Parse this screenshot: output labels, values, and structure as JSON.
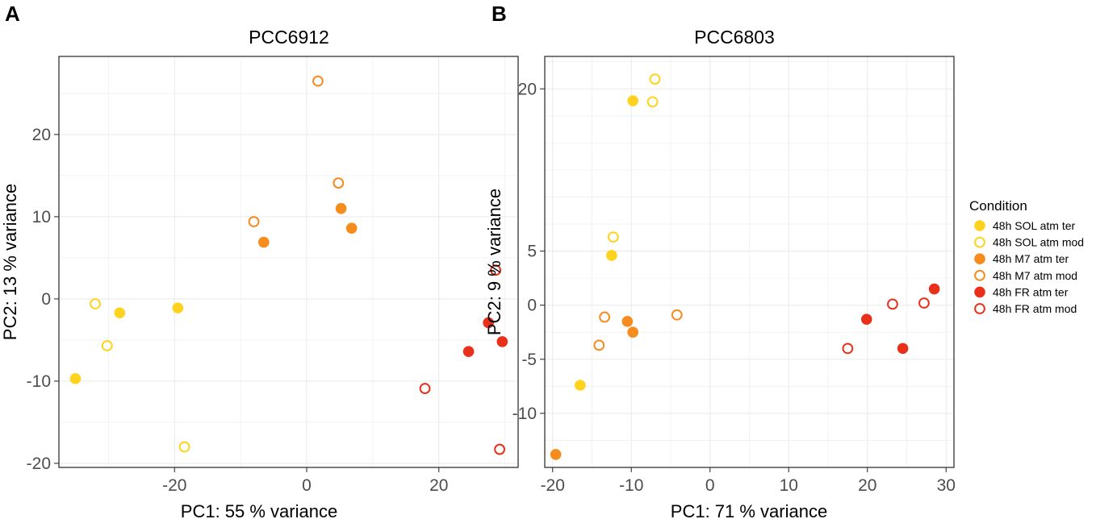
{
  "panels": [
    {
      "letter": "A"
    },
    {
      "letter": "B"
    }
  ],
  "legend": {
    "title": "Condition",
    "items": [
      {
        "label": "48h SOL atm ter",
        "color": "#FFD31D",
        "filled": true
      },
      {
        "label": "48h SOL atm mod",
        "color": "#FFD31D",
        "filled": false
      },
      {
        "label": "48h M7 atm ter",
        "color": "#F68B1E",
        "filled": true
      },
      {
        "label": "48h M7 atm mod",
        "color": "#F68B1E",
        "filled": false
      },
      {
        "label": "48h FR atm ter",
        "color": "#E8301B",
        "filled": true
      },
      {
        "label": "48h FR atm mod",
        "color": "#E8301B",
        "filled": false
      }
    ]
  },
  "chart_data": [
    {
      "type": "scatter",
      "title": "PCC6912",
      "xlabel": "PC1: 55 % variance",
      "ylabel": "PC2: 13 % variance",
      "xlim": [
        -37.5,
        32
      ],
      "ylim": [
        -20.5,
        29.5
      ],
      "xticks": [
        -20,
        0,
        20
      ],
      "yticks": [
        -20,
        -10,
        0,
        10,
        20
      ],
      "grid": true,
      "series": [
        {
          "name": "48h SOL atm ter",
          "points": [
            [
              -35,
              -9.7
            ],
            [
              -28.3,
              -1.7
            ],
            [
              -19.5,
              -1.1
            ]
          ]
        },
        {
          "name": "48h SOL atm mod",
          "points": [
            [
              -32,
              -0.6
            ],
            [
              -30.2,
              -5.7
            ],
            [
              -18.5,
              -18
            ]
          ]
        },
        {
          "name": "48h M7 atm ter",
          "points": [
            [
              -6.5,
              6.9
            ],
            [
              5.2,
              11
            ],
            [
              6.8,
              8.6
            ]
          ]
        },
        {
          "name": "48h M7 atm mod",
          "points": [
            [
              -8,
              9.4
            ],
            [
              1.7,
              26.5
            ],
            [
              4.8,
              14.1
            ]
          ]
        },
        {
          "name": "48h FR atm ter",
          "points": [
            [
              24.5,
              -6.4
            ],
            [
              27.5,
              -2.9
            ],
            [
              29.6,
              -5.2
            ]
          ]
        },
        {
          "name": "48h FR atm mod",
          "points": [
            [
              17.9,
              -10.9
            ],
            [
              28.6,
              3.5
            ],
            [
              29.2,
              -18.3
            ]
          ]
        }
      ]
    },
    {
      "type": "scatter",
      "title": "PCC6803",
      "xlabel": "PC1: 71 % variance",
      "ylabel": "PC2: 9 % variance",
      "xlim": [
        -21,
        31
      ],
      "ylim": [
        -15,
        23
      ],
      "xticks": [
        -20,
        -10,
        0,
        10,
        20,
        30
      ],
      "yticks": [
        -10,
        -5,
        0,
        5,
        20
      ],
      "ytick_labels": [
        "-10",
        "-5",
        "0",
        "5",
        "20"
      ],
      "grid": true,
      "series": [
        {
          "name": "48h SOL atm ter",
          "points": [
            [
              -16.5,
              -7.4
            ],
            [
              -12.5,
              4.6
            ],
            [
              -9.8,
              18.9
            ]
          ]
        },
        {
          "name": "48h SOL atm mod",
          "points": [
            [
              -12.3,
              6.3
            ],
            [
              -7.3,
              18.8
            ],
            [
              -7,
              20.9
            ]
          ]
        },
        {
          "name": "48h M7 atm ter",
          "points": [
            [
              -19.6,
              -13.8
            ],
            [
              -10.5,
              -1.5
            ],
            [
              -9.8,
              -2.5
            ]
          ]
        },
        {
          "name": "48h M7 atm mod",
          "points": [
            [
              -14.1,
              -3.7
            ],
            [
              -13.4,
              -1.1
            ],
            [
              -4.2,
              -0.9
            ]
          ]
        },
        {
          "name": "48h FR atm ter",
          "points": [
            [
              19.9,
              -1.3
            ],
            [
              24.5,
              -4
            ],
            [
              28.5,
              1.5
            ]
          ]
        },
        {
          "name": "48h FR atm mod",
          "points": [
            [
              17.5,
              -4
            ],
            [
              23.2,
              0.1
            ],
            [
              27.2,
              0.2
            ]
          ]
        }
      ]
    }
  ]
}
